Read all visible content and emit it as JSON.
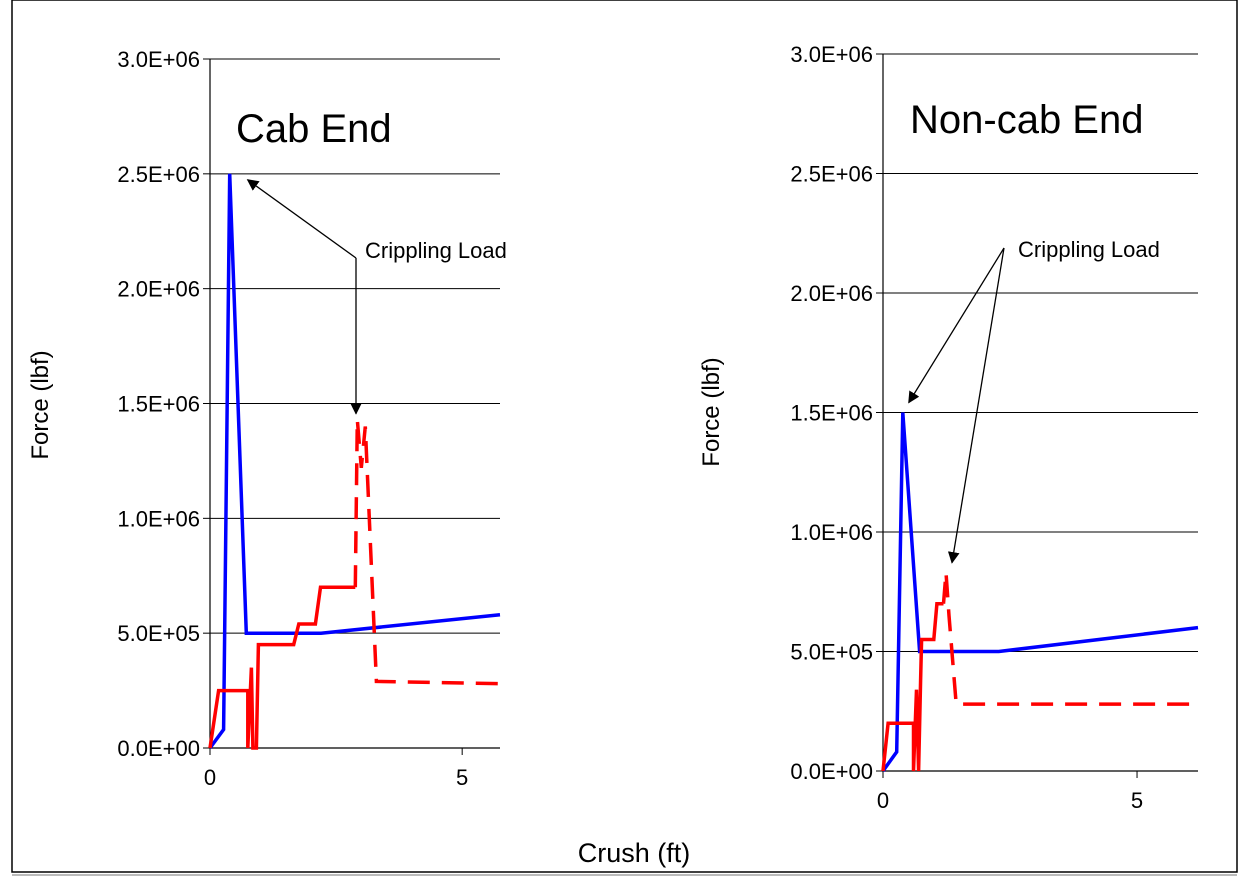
{
  "figure": {
    "shared_xlabel": "Crush (ft)"
  },
  "chart_data": [
    {
      "type": "line",
      "title": "Cab End",
      "xlabel": "",
      "ylabel": "Force (lbf)",
      "xlim": [
        0,
        5.75
      ],
      "ylim": [
        0,
        3000000
      ],
      "x_ticks": [
        0,
        5
      ],
      "x_tick_labels": [
        "0",
        "5"
      ],
      "y_ticks": [
        0,
        500000,
        1000000,
        1500000,
        2000000,
        2500000,
        3000000
      ],
      "y_tick_labels": [
        "0.0E+00",
        "5.0E+05",
        "1.0E+06",
        "1.5E+06",
        "2.0E+06",
        "2.5E+06",
        "3.0E+06"
      ],
      "grid": "horizontal",
      "series": [
        {
          "color": "#0000ff",
          "dash": "solid",
          "x": [
            0,
            0.27,
            0.39,
            0.72,
            2.2,
            5.75
          ],
          "y": [
            0,
            80000,
            2500000,
            500000,
            500000,
            580000
          ]
        },
        {
          "color": "#ff0000",
          "dash": "solid",
          "x": [
            0,
            0.17,
            0.75,
            0.75,
            0.82,
            0.85,
            0.92,
            0.96,
            1.66,
            1.76,
            2.09,
            2.19,
            2.88
          ],
          "y": [
            0,
            250000,
            250000,
            0,
            350000,
            0,
            0,
            450000,
            450000,
            540000,
            540000,
            700000,
            700000
          ]
        },
        {
          "color": "#ff0000",
          "dash": "dashed",
          "x": [
            2.88,
            2.92,
            3.0,
            3.08,
            3.3,
            5.75
          ],
          "y": [
            700000,
            1430000,
            1220000,
            1400000,
            290000,
            280000
          ]
        }
      ],
      "annotations": [
        {
          "text": "Crippling Load",
          "targets": [
            [
              0.39,
              2500000
            ],
            [
              2.92,
              1430000
            ]
          ]
        }
      ]
    },
    {
      "type": "line",
      "title": "Non-cab End",
      "xlabel": "",
      "ylabel": "Force (lbf)",
      "xlim": [
        0,
        6.2
      ],
      "ylim": [
        0,
        3000000
      ],
      "x_ticks": [
        0,
        5
      ],
      "x_tick_labels": [
        "0",
        "5"
      ],
      "y_ticks": [
        0,
        500000,
        1000000,
        1500000,
        2000000,
        2500000,
        3000000
      ],
      "y_tick_labels": [
        "0.0E+00",
        "5.0E+05",
        "1.0E+06",
        "1.5E+06",
        "2.0E+06",
        "2.5E+06",
        "3.0E+06"
      ],
      "grid": "horizontal",
      "series": [
        {
          "color": "#0000ff",
          "dash": "solid",
          "x": [
            0,
            0.27,
            0.39,
            0.72,
            2.28,
            6.2
          ],
          "y": [
            0,
            80000,
            1500000,
            500000,
            500000,
            600000
          ]
        },
        {
          "color": "#ff0000",
          "dash": "solid",
          "x": [
            0,
            0.1,
            0.6,
            0.6,
            0.66,
            0.7,
            0.74,
            0.76,
            1.0,
            1.06,
            1.19
          ],
          "y": [
            0,
            200000,
            200000,
            0,
            340000,
            0,
            380000,
            550000,
            550000,
            700000,
            700000
          ]
        },
        {
          "color": "#ff0000",
          "dash": "dashed",
          "x": [
            1.19,
            1.24,
            1.3,
            1.44,
            6.2
          ],
          "y": [
            700000,
            830000,
            650000,
            280000,
            280000
          ]
        }
      ],
      "annotations": [
        {
          "text": "Crippling Load",
          "targets": [
            [
              0.39,
              1500000
            ],
            [
              1.24,
              830000
            ]
          ]
        }
      ]
    }
  ]
}
